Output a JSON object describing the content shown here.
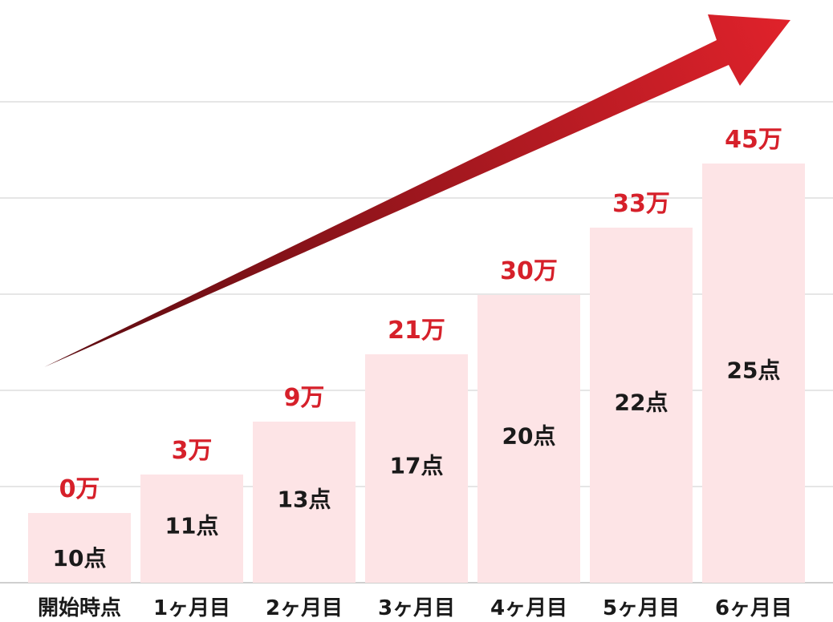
{
  "chart_data": {
    "type": "bar",
    "categories": [
      "開始時点",
      "1ヶ月目",
      "2ヶ月目",
      "3ヶ月目",
      "4ヶ月目",
      "5ヶ月目",
      "6ヶ月目"
    ],
    "values": [
      0,
      3,
      9,
      21,
      30,
      33,
      45
    ],
    "value_labels": [
      "0万",
      "3万",
      "9万",
      "21万",
      "30万",
      "33万",
      "45万"
    ],
    "counts": [
      10,
      11,
      13,
      17,
      20,
      22,
      25
    ],
    "count_labels": [
      "10点",
      "11点",
      "13点",
      "17点",
      "20点",
      "22点",
      "25点"
    ],
    "grid": true,
    "legend": "none",
    "colors": {
      "bar": "#fde4e6",
      "value_label": "#d6202a",
      "arrow_start": "#5a0b10",
      "arrow_end": "#e0222b"
    }
  }
}
